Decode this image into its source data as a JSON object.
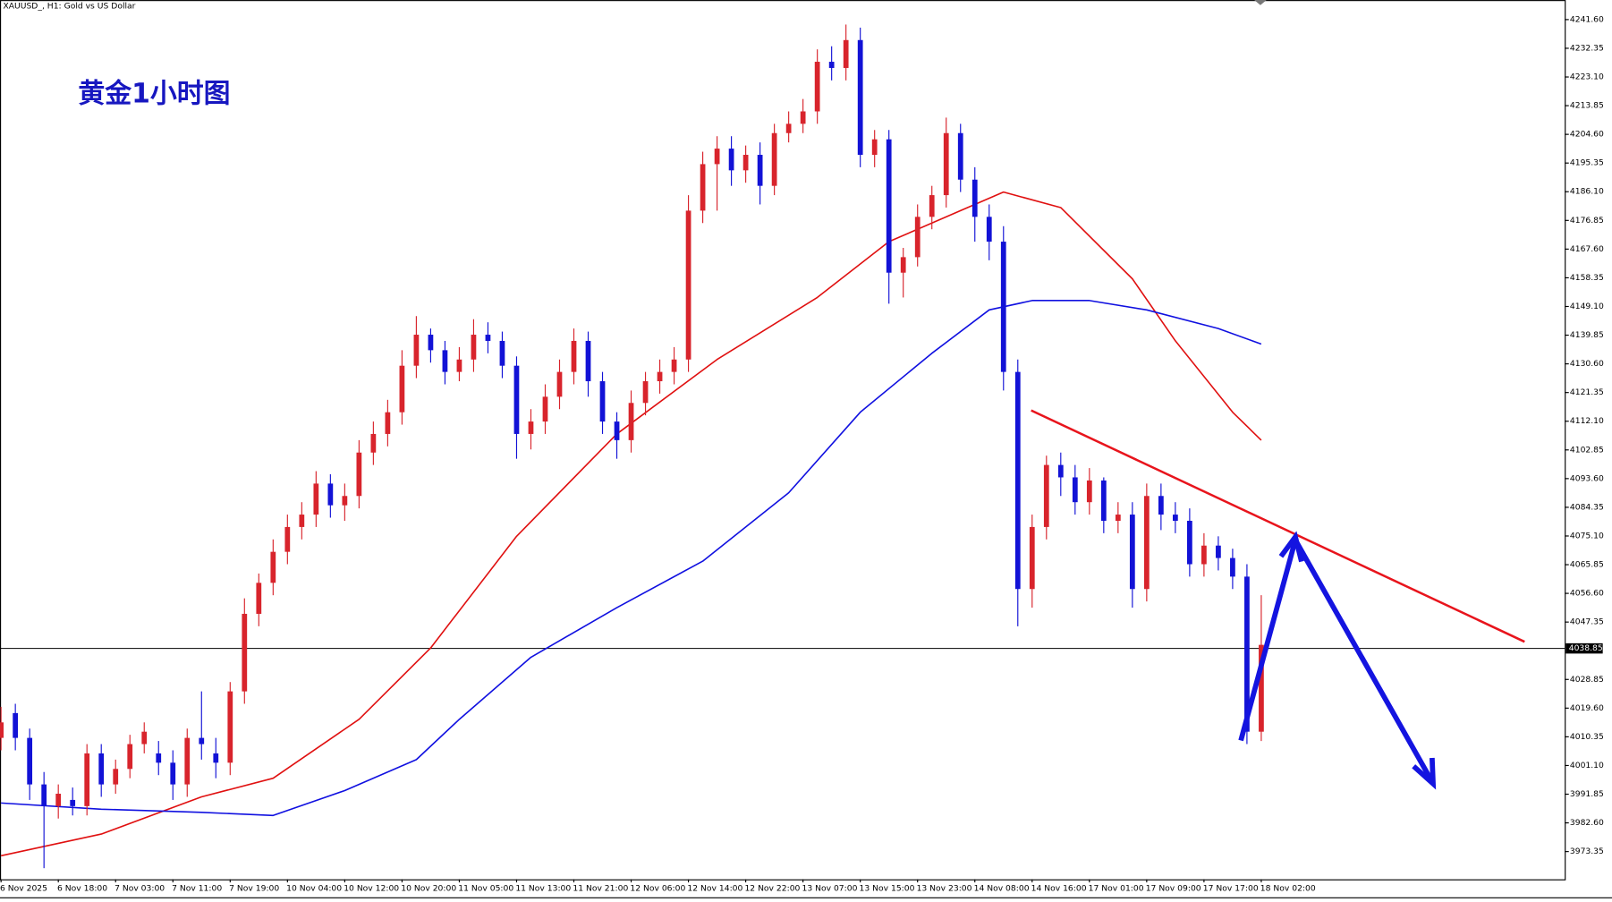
{
  "chart_data": {
    "type": "candlestick",
    "title": "XAUUSD_, H1:  Gold vs US Dollar",
    "annotation": "黄金1小时图",
    "up_color": "#d8242c",
    "down_color": "#1212d6",
    "ylim": [
      3964.4,
      4247.9
    ],
    "yticks": [
      {
        "value": 4241.6,
        "label": "4241.60"
      },
      4232.35,
      {
        "value": 4223.1,
        "label": "4223.10"
      },
      4213.85,
      {
        "value": 4204.6,
        "label": "4204.60"
      },
      4195.35,
      {
        "value": 4186.1,
        "label": "4186.10"
      },
      4176.85,
      {
        "value": 4167.6,
        "label": "4167.60"
      },
      4158.35,
      {
        "value": 4149.1,
        "label": "4149.10"
      },
      4139.85,
      {
        "value": 4130.6,
        "label": "4130.60"
      },
      4121.35,
      {
        "value": 4112.1,
        "label": "4112.10"
      },
      4102.85,
      {
        "value": 4093.6,
        "label": "4093.60"
      },
      4084.35,
      {
        "value": 4075.1,
        "label": "4075.10"
      },
      4065.85,
      {
        "value": 4056.6,
        "label": "4056.60"
      },
      4047.35,
      4028.85,
      {
        "value": 4019.6,
        "label": "4019.60"
      },
      4010.35,
      {
        "value": 4001.1,
        "label": "4001.10"
      },
      3991.85,
      {
        "value": 3982.6,
        "label": "3982.60"
      },
      3973.35
    ],
    "price_line": 4038.85,
    "categories": [
      "6 Nov 2025",
      null,
      null,
      null,
      "6 Nov 18:00",
      null,
      null,
      null,
      "7 Nov 03:00",
      null,
      null,
      null,
      "7 Nov 11:00",
      null,
      null,
      null,
      "7 Nov 19:00",
      null,
      null,
      null,
      "10 Nov 04:00",
      null,
      null,
      null,
      "10 Nov 12:00",
      null,
      null,
      null,
      "10 Nov 20:00",
      null,
      null,
      null,
      "11 Nov 05:00",
      null,
      null,
      null,
      "11 Nov 13:00",
      null,
      null,
      null,
      "11 Nov 21:00",
      null,
      null,
      null,
      "12 Nov 06:00",
      null,
      null,
      null,
      "12 Nov 14:00",
      null,
      null,
      null,
      "12 Nov 22:00",
      null,
      null,
      null,
      "13 Nov 07:00",
      null,
      null,
      null,
      "13 Nov 15:00",
      null,
      null,
      null,
      "13 Nov 23:00",
      null,
      null,
      null,
      "14 Nov 08:00",
      null,
      null,
      null,
      "14 Nov 16:00",
      null,
      null,
      null,
      "17 Nov 01:00",
      null,
      null,
      null,
      "17 Nov 09:00",
      null,
      null,
      null,
      "17 Nov 17:00",
      null,
      null,
      null,
      "18 Nov 02:00"
    ],
    "open": [
      4010,
      4018,
      4010,
      3995,
      3988,
      3990,
      3988,
      4005,
      3995,
      4000,
      4008,
      4005,
      4002,
      3995,
      4010,
      4005,
      4002,
      4025,
      4050,
      4060,
      4070,
      4078,
      4082,
      4092,
      4085,
      4088,
      4102,
      4108,
      4115,
      4130,
      4140,
      4135,
      4128,
      4132,
      4140,
      4138,
      4130,
      4108,
      4112,
      4120,
      4128,
      4138,
      4125,
      4112,
      4106,
      4118,
      4125,
      4128,
      4132,
      4180,
      4195,
      4200,
      4193,
      4198,
      4188,
      4205,
      4208,
      4212,
      4228,
      4226,
      4235,
      4198,
      4203,
      4160,
      4165,
      4178,
      4185,
      4205,
      4190,
      4178,
      4170,
      4128,
      4058,
      4078,
      4098,
      4094,
      4086,
      4093,
      4080,
      4082,
      4058,
      4088,
      4082,
      4080,
      4066,
      4072,
      4068,
      4062,
      4012
    ],
    "high": [
      4020,
      4021,
      4013,
      3999,
      3995,
      3994,
      4008,
      4008,
      4003,
      4011,
      4015,
      4009,
      4006,
      4013,
      4025,
      4010,
      4028,
      4055,
      4063,
      4074,
      4082,
      4086,
      4096,
      4095,
      4092,
      4106,
      4112,
      4119,
      4135,
      4146,
      4142,
      4138,
      4136,
      4145,
      4144,
      4141,
      4133,
      4116,
      4124,
      4132,
      4142,
      4141,
      4128,
      4115,
      4122,
      4128,
      4132,
      4136,
      4185,
      4199,
      4204,
      4204,
      4201,
      4202,
      4208,
      4212,
      4216,
      4232,
      4233,
      4240,
      4239,
      4206,
      4206,
      4168,
      4182,
      4188,
      4210,
      4208,
      4194,
      4182,
      4175,
      4132,
      4082,
      4101,
      4102,
      4098,
      4097,
      4094,
      4086,
      4086,
      4092,
      4092,
      4086,
      4084,
      4076,
      4075,
      4071,
      4066,
      4056
    ],
    "low": [
      4006,
      4006,
      3990,
      3968,
      3984,
      3985,
      3985,
      3991,
      3992,
      3997,
      4005,
      3998,
      3990,
      3991,
      4003,
      3997,
      3998,
      4021,
      4046,
      4056,
      4066,
      4074,
      4078,
      4081,
      4080,
      4084,
      4098,
      4104,
      4111,
      4126,
      4131,
      4124,
      4125,
      4128,
      4134,
      4126,
      4100,
      4103,
      4108,
      4116,
      4124,
      4120,
      4108,
      4100,
      4102,
      4114,
      4121,
      4124,
      4128,
      4176,
      4180,
      4188,
      4189,
      4182,
      4185,
      4202,
      4205,
      4208,
      4222,
      4222,
      4194,
      4194,
      4150,
      4152,
      4162,
      4174,
      4181,
      4186,
      4170,
      4164,
      4122,
      4046,
      4052,
      4074,
      4088,
      4082,
      4082,
      4076,
      4076,
      4052,
      4054,
      4077,
      4076,
      4062,
      4062,
      4064,
      4058,
      4008,
      4009
    ],
    "close": [
      4015,
      4010,
      3995,
      3988,
      3992,
      3988,
      4005,
      3995,
      4000,
      4008,
      4012,
      4002,
      3995,
      4010,
      4008,
      4002,
      4025,
      4050,
      4060,
      4070,
      4078,
      4082,
      4092,
      4085,
      4088,
      4102,
      4108,
      4115,
      4130,
      4140,
      4135,
      4128,
      4132,
      4140,
      4138,
      4130,
      4108,
      4112,
      4120,
      4128,
      4138,
      4125,
      4112,
      4106,
      4118,
      4125,
      4128,
      4132,
      4180,
      4195,
      4200,
      4193,
      4198,
      4188,
      4205,
      4208,
      4212,
      4228,
      4226,
      4235,
      4198,
      4203,
      4160,
      4165,
      4178,
      4185,
      4205,
      4190,
      4178,
      4170,
      4128,
      4058,
      4078,
      4098,
      4094,
      4086,
      4093,
      4080,
      4082,
      4058,
      4088,
      4082,
      4080,
      4066,
      4072,
      4068,
      4062,
      4012,
      4040
    ],
    "lines": [
      {
        "color": "#e01010",
        "x": [
          0,
          7,
          14,
          19,
          25,
          30,
          36,
          43,
          50,
          57,
          62,
          67,
          70,
          74,
          79,
          82,
          86,
          88
        ],
        "values": [
          3972,
          3979,
          3991,
          3997,
          4016,
          4039,
          4075,
          4108,
          4132,
          4152,
          4170,
          4180,
          4186,
          4181,
          4158,
          4138,
          4115,
          4106
        ]
      },
      {
        "color": "#1010e0",
        "x": [
          0,
          7,
          14,
          19,
          24,
          29,
          32,
          37,
          43,
          49,
          55,
          60,
          65,
          69,
          72,
          76,
          80,
          85,
          88
        ],
        "values": [
          3989,
          3987,
          3986,
          3985,
          3993,
          4003,
          4016,
          4036,
          4052,
          4067,
          4089,
          4115,
          4134,
          4148,
          4151,
          4151,
          4148,
          4142,
          4137
        ]
      }
    ]
  }
}
